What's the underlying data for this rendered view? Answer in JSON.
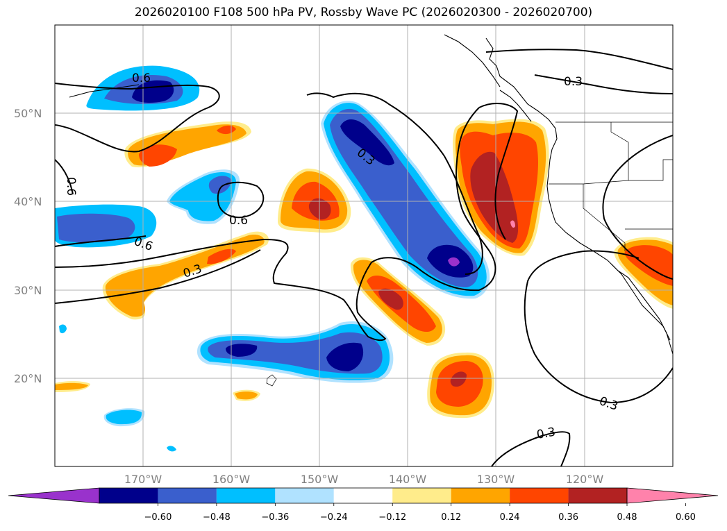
{
  "title": "2026020100 F108 500 hPa PV, Rossby Wave PC (2026020300 - 2026020700)",
  "lat_labels": [
    "50°N",
    "40°N",
    "30°N",
    "20°N"
  ],
  "lon_labels": [
    "170°W",
    "160°W",
    "150°W",
    "140°W",
    "130°W",
    "120°W"
  ],
  "colorbar": {
    "ticks": [
      "−0.60",
      "−0.48",
      "−0.36",
      "−0.24",
      "−0.12",
      "0.12",
      "0.24",
      "0.36",
      "0.48",
      "0.60"
    ],
    "colors": [
      "#9932cc",
      "#00008b",
      "#3a5fcd",
      "#00bfff",
      "#b0e2ff",
      "#ffffff",
      "#ffec8b",
      "#ffa500",
      "#ff4500",
      "#b22222",
      "#ff82ab"
    ]
  },
  "contour_labels": [
    "0.6",
    "0.3",
    "0.6",
    "0.6",
    "0.3",
    "0.6",
    "0.3",
    "0.3",
    "0.3"
  ]
}
